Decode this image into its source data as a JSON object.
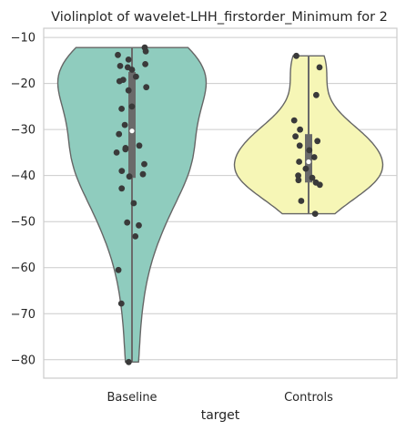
{
  "chart_data": {
    "type": "violin",
    "title": "Violinplot of wavelet-LHH_firstorder_Minimum for 2",
    "xlabel": "target",
    "ylabel": "",
    "categories": [
      "Baseline",
      "Controls"
    ],
    "ylim": [
      -84,
      -8
    ],
    "yticks": [
      -10,
      -20,
      -30,
      -40,
      -50,
      -60,
      -70,
      -80
    ],
    "grid": true,
    "colors": {
      "Baseline": "#8fccbe",
      "Controls": "#f6f6b6",
      "points": "#3a3a3a",
      "outline": "#666666"
    },
    "series": [
      {
        "category": "Baseline",
        "median": -30.3,
        "q1": -40.5,
        "q3": -17.5,
        "whisker": [
          -80.5,
          -12.2
        ],
        "points": [
          -12.2,
          -13.0,
          -13.8,
          -14.8,
          -15.8,
          -16.2,
          -16.5,
          -17.0,
          -18.5,
          -19.2,
          -19.5,
          -20.8,
          -21.5,
          -25.5,
          -25.0,
          -29.0,
          -31.0,
          -33.5,
          -34.0,
          -34.3,
          -35.0,
          -37.5,
          -39.0,
          -39.7,
          -40.2,
          -42.8,
          -46.0,
          -50.2,
          -50.8,
          -53.2,
          -60.5,
          -67.8,
          -80.5
        ]
      },
      {
        "category": "Controls",
        "median": -37.0,
        "q1": -41.5,
        "q3": -31.0,
        "whisker": [
          -48.3,
          -14.0
        ],
        "points": [
          -14.0,
          -16.5,
          -22.5,
          -28.0,
          -30.0,
          -31.5,
          -32.5,
          -33.5,
          -34.5,
          -36.0,
          -37.0,
          -38.5,
          -40.0,
          -40.5,
          -41.0,
          -41.5,
          -42.0,
          -45.5,
          -48.3
        ]
      }
    ]
  }
}
